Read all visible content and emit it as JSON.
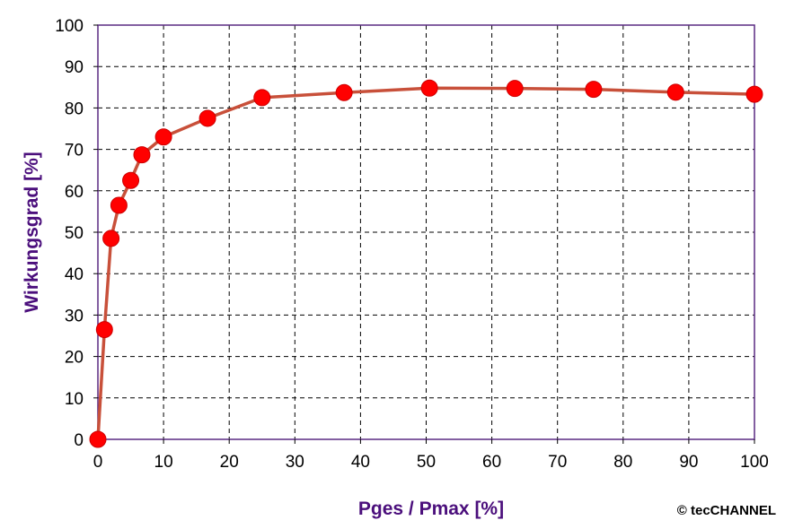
{
  "chart_data": {
    "type": "line",
    "xlabel": "Pges / Pmax [%]",
    "ylabel": "Wirkungsgrad [%]",
    "xlim": [
      0,
      100
    ],
    "ylim": [
      0,
      100
    ],
    "xticks": [
      0,
      10,
      20,
      30,
      40,
      50,
      60,
      70,
      80,
      90,
      100
    ],
    "yticks": [
      0,
      10,
      20,
      30,
      40,
      50,
      60,
      70,
      80,
      90,
      100
    ],
    "grid": true,
    "series": [
      {
        "x": [
          0,
          1,
          2,
          3.2,
          5,
          6.7,
          10,
          16.7,
          25,
          37.5,
          50.5,
          63.5,
          75.5,
          88,
          100
        ],
        "y": [
          0,
          26.5,
          48.5,
          56.5,
          62.5,
          68.7,
          73,
          77.5,
          82.5,
          83.7,
          84.8,
          84.7,
          84.5,
          83.8,
          83.3
        ]
      }
    ],
    "colors": {
      "line": "#c8503a",
      "marker": "#ff0000",
      "axis_title": "#4b0f7c",
      "grid": "#000000",
      "frame": "#5a2a82"
    }
  },
  "credit": "© tecCHANNEL"
}
